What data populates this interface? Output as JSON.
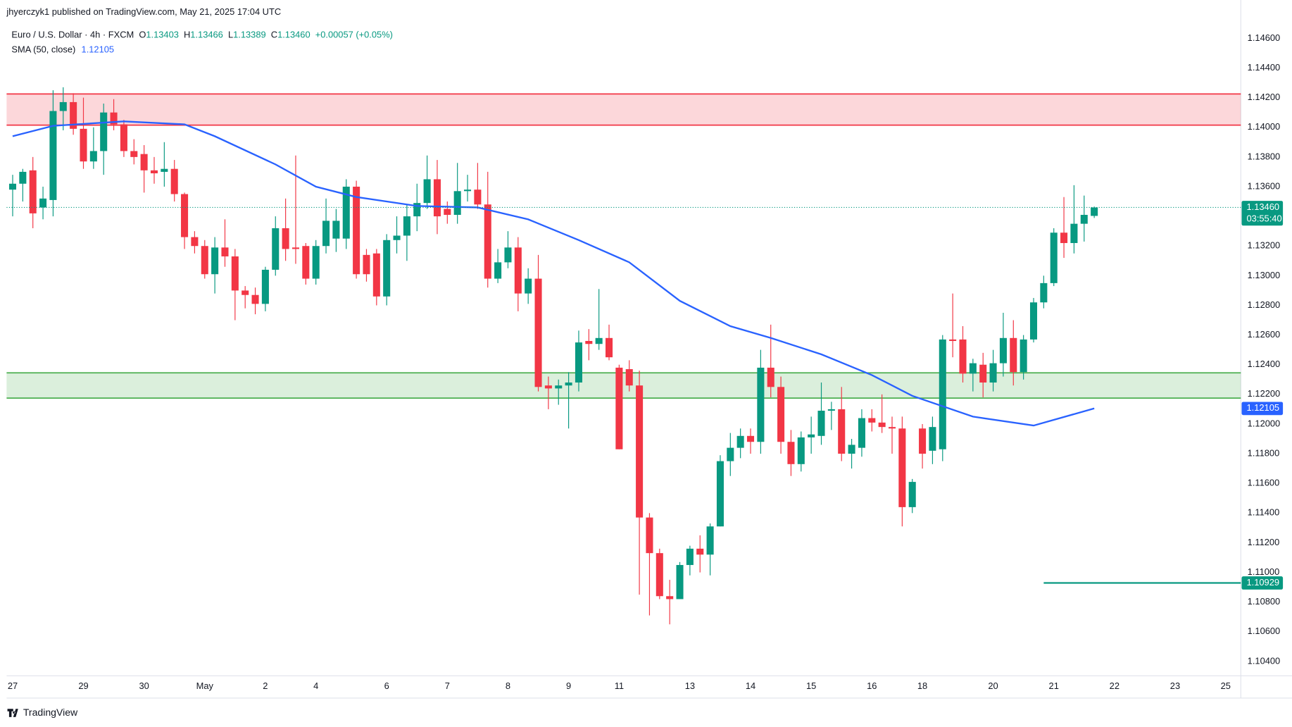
{
  "header": {
    "published": "jhyerczyk1 published on TradingView.com, May 21, 2025 17:04 UTC"
  },
  "legend": {
    "symbol": "Euro / U.S. Dollar · 4h · FXCM",
    "o_label": "O",
    "o": "1.13403",
    "h_label": "H",
    "h": "1.13466",
    "l_label": "L",
    "l": "1.13389",
    "c_label": "C",
    "c": "1.13460",
    "change": "+0.00057 (+0.05%)",
    "sma_name": "SMA (50, close)",
    "sma_value": "1.12105"
  },
  "footer": {
    "brand": "TradingView"
  },
  "chart_data": {
    "type": "candlestick",
    "up_color": "#089981",
    "down_color": "#f23645",
    "grid": false,
    "xlim": [
      -0.6,
      121.5
    ],
    "ylim": [
      1.1032,
      1.1468
    ],
    "xticks": [
      {
        "value": 0,
        "label": "27"
      },
      {
        "value": 7,
        "label": "29"
      },
      {
        "value": 13,
        "label": "30"
      },
      {
        "value": 19,
        "label": "May"
      },
      {
        "value": 25,
        "label": "2"
      },
      {
        "value": 30,
        "label": "4"
      },
      {
        "value": 37,
        "label": "6"
      },
      {
        "value": 43,
        "label": "7"
      },
      {
        "value": 49,
        "label": "8"
      },
      {
        "value": 55,
        "label": "9"
      },
      {
        "value": 60,
        "label": "11"
      },
      {
        "value": 67,
        "label": "13"
      },
      {
        "value": 73,
        "label": "14"
      },
      {
        "value": 79,
        "label": "15"
      },
      {
        "value": 85,
        "label": "16"
      },
      {
        "value": 90,
        "label": "18"
      },
      {
        "value": 97,
        "label": "20"
      },
      {
        "value": 103,
        "label": "21"
      },
      {
        "value": 109,
        "label": "22"
      },
      {
        "value": 115,
        "label": "23"
      },
      {
        "value": 120,
        "label": "25"
      }
    ],
    "yticks": [
      {
        "value": 1.146,
        "label": "1.14600"
      },
      {
        "value": 1.144,
        "label": "1.14400"
      },
      {
        "value": 1.142,
        "label": "1.14200"
      },
      {
        "value": 1.14,
        "label": "1.14000"
      },
      {
        "value": 1.138,
        "label": "1.13800"
      },
      {
        "value": 1.136,
        "label": "1.13600"
      },
      {
        "value": 1.132,
        "label": "1.13200"
      },
      {
        "value": 1.13,
        "label": "1.13000"
      },
      {
        "value": 1.128,
        "label": "1.12800"
      },
      {
        "value": 1.126,
        "label": "1.12600"
      },
      {
        "value": 1.124,
        "label": "1.12400"
      },
      {
        "value": 1.122,
        "label": "1.12200"
      },
      {
        "value": 1.12,
        "label": "1.12000"
      },
      {
        "value": 1.118,
        "label": "1.11800"
      },
      {
        "value": 1.116,
        "label": "1.11600"
      },
      {
        "value": 1.114,
        "label": "1.11400"
      },
      {
        "value": 1.112,
        "label": "1.11200"
      },
      {
        "value": 1.11,
        "label": "1.11000"
      },
      {
        "value": 1.108,
        "label": "1.10800"
      },
      {
        "value": 1.106,
        "label": "1.10600"
      },
      {
        "value": 1.104,
        "label": "1.10400"
      }
    ],
    "open": [
      1.1358,
      1.1362,
      1.1371,
      1.1346,
      1.1351,
      1.1411,
      1.1417,
      1.1399,
      1.1377,
      1.1384,
      1.141,
      1.1402,
      1.1384,
      1.1382,
      1.1371,
      1.137,
      1.1372,
      1.1355,
      1.1326,
      1.132,
      1.1301,
      1.1319,
      1.1313,
      1.129,
      1.1287,
      1.1281,
      1.1304,
      1.1332,
      1.1319,
      1.132,
      1.1298,
      1.132,
      1.1325,
      1.1325,
      1.136,
      1.1314,
      1.1315,
      1.1286,
      1.1324,
      1.1327,
      1.134,
      1.1349,
      1.1365,
      1.1345,
      1.1341,
      1.1357,
      1.1358,
      1.1348,
      1.1298,
      1.1309,
      1.1319,
      1.1288,
      1.1298,
      1.1226,
      1.1224,
      1.1226,
      1.1228,
      1.1256,
      1.1254,
      1.1258,
      1.1238,
      1.1237,
      1.1226,
      1.1137,
      1.1113,
      1.1084,
      1.1082,
      1.1105,
      1.1116,
      1.1112,
      1.1131,
      1.1175,
      1.1184,
      1.1192,
      1.1188,
      1.1238,
      1.1225,
      1.1188,
      1.1173,
      1.1191,
      1.1192,
      1.1209,
      1.121,
      1.118,
      1.1184,
      1.1204,
      1.1201,
      1.1198,
      1.1197,
      1.1144,
      1.1197,
      1.1182,
      1.1183,
      1.1257,
      1.1257,
      1.1234,
      1.124,
      1.1228,
      1.1241,
      1.1258,
      1.1235,
      1.1257,
      1.1282,
      1.1295,
      1.1329,
      1.1322,
      1.1335,
      1.13403
    ],
    "high": [
      1.1368,
      1.1372,
      1.138,
      1.136,
      1.1425,
      1.1427,
      1.1423,
      1.142,
      1.14,
      1.1416,
      1.1419,
      1.1405,
      1.1392,
      1.1388,
      1.138,
      1.139,
      1.1378,
      1.1356,
      1.133,
      1.1324,
      1.1326,
      1.1338,
      1.1318,
      1.1293,
      1.1292,
      1.1306,
      1.134,
      1.1352,
      1.1381,
      1.1322,
      1.1324,
      1.1352,
      1.1345,
      1.1365,
      1.1364,
      1.1318,
      1.1318,
      1.1328,
      1.134,
      1.1348,
      1.1362,
      1.1381,
      1.1378,
      1.135,
      1.1376,
      1.1368,
      1.1376,
      1.137,
      1.1318,
      1.133,
      1.1326,
      1.1305,
      1.1314,
      1.1232,
      1.123,
      1.1235,
      1.1263,
      1.1264,
      1.1291,
      1.1267,
      1.124,
      1.1243,
      1.1236,
      1.114,
      1.1116,
      1.1095,
      1.1107,
      1.1118,
      1.1125,
      1.1133,
      1.1179,
      1.1194,
      1.1197,
      1.1197,
      1.125,
      1.1267,
      1.1232,
      1.1196,
      1.1195,
      1.1205,
      1.1228,
      1.1215,
      1.1225,
      1.119,
      1.121,
      1.121,
      1.122,
      1.1205,
      1.1205,
      1.1163,
      1.12,
      1.1205,
      1.126,
      1.1288,
      1.1266,
      1.1244,
      1.1248,
      1.125,
      1.1275,
      1.127,
      1.126,
      1.1285,
      1.13,
      1.1332,
      1.1353,
      1.1361,
      1.1354,
      1.13466
    ],
    "low": [
      1.134,
      1.135,
      1.1332,
      1.1338,
      1.134,
      1.1398,
      1.1395,
      1.1372,
      1.1372,
      1.1368,
      1.1398,
      1.138,
      1.1375,
      1.1356,
      1.1362,
      1.136,
      1.135,
      1.1318,
      1.1315,
      1.1298,
      1.1288,
      1.1306,
      1.127,
      1.1278,
      1.1274,
      1.1276,
      1.13,
      1.131,
      1.1308,
      1.1294,
      1.1294,
      1.1315,
      1.1316,
      1.1318,
      1.1298,
      1.1296,
      1.128,
      1.128,
      1.1315,
      1.131,
      1.133,
      1.1345,
      1.1328,
      1.1335,
      1.1335,
      1.135,
      1.1345,
      1.1292,
      1.1295,
      1.1305,
      1.1276,
      1.1281,
      1.1222,
      1.121,
      1.1213,
      1.1197,
      1.1222,
      1.1243,
      1.125,
      1.1243,
      1.1183,
      1.1222,
      1.1085,
      1.1071,
      1.1082,
      1.1065,
      1.1082,
      1.1098,
      1.11,
      1.1098,
      1.1131,
      1.1165,
      1.1177,
      1.118,
      1.118,
      1.1218,
      1.118,
      1.1165,
      1.1168,
      1.118,
      1.1186,
      1.1196,
      1.1175,
      1.117,
      1.1178,
      1.1195,
      1.1194,
      1.118,
      1.1131,
      1.114,
      1.117,
      1.1173,
      1.1175,
      1.1245,
      1.1228,
      1.1222,
      1.1218,
      1.1222,
      1.1232,
      1.1226,
      1.123,
      1.1255,
      1.1278,
      1.1293,
      1.1312,
      1.1315,
      1.1323,
      1.13389
    ],
    "close": [
      1.1362,
      1.137,
      1.1342,
      1.1352,
      1.1411,
      1.1417,
      1.1399,
      1.1377,
      1.1384,
      1.141,
      1.1402,
      1.1384,
      1.138,
      1.1371,
      1.1369,
      1.1372,
      1.1355,
      1.1326,
      1.132,
      1.1301,
      1.1319,
      1.1313,
      1.129,
      1.1287,
      1.1281,
      1.1304,
      1.1332,
      1.1318,
      1.1318,
      1.1298,
      1.132,
      1.1337,
      1.1337,
      1.136,
      1.1301,
      1.1301,
      1.1286,
      1.1324,
      1.1327,
      1.134,
      1.1349,
      1.1365,
      1.134,
      1.1341,
      1.1357,
      1.1358,
      1.1348,
      1.1298,
      1.1309,
      1.1319,
      1.1288,
      1.1298,
      1.1225,
      1.1224,
      1.1226,
      1.1228,
      1.1255,
      1.1254,
      1.1258,
      1.1245,
      1.1183,
      1.1226,
      1.1137,
      1.1113,
      1.1084,
      1.1082,
      1.1105,
      1.1116,
      1.1112,
      1.1131,
      1.1175,
      1.1184,
      1.1192,
      1.1188,
      1.1238,
      1.1225,
      1.1188,
      1.1173,
      1.1191,
      1.1193,
      1.1209,
      1.121,
      1.118,
      1.1186,
      1.1204,
      1.1201,
      1.1198,
      1.1197,
      1.1144,
      1.1161,
      1.118,
      1.1198,
      1.1257,
      1.1256,
      1.1234,
      1.1241,
      1.1228,
      1.1241,
      1.1258,
      1.1235,
      1.1257,
      1.1282,
      1.1295,
      1.1329,
      1.1322,
      1.1335,
      1.1341,
      1.1346
    ],
    "sma": {
      "name": "SMA (50, close)",
      "color": "#2962ff",
      "x": [
        0,
        4,
        11,
        17,
        20,
        26,
        30,
        34,
        40,
        46,
        51,
        56,
        61,
        66,
        71,
        75,
        80,
        85,
        89,
        95,
        101,
        107
      ],
      "values": [
        1.1394,
        1.1401,
        1.1404,
        1.1402,
        1.1394,
        1.1375,
        1.136,
        1.1353,
        1.1347,
        1.1346,
        1.1338,
        1.1324,
        1.1309,
        1.1283,
        1.1266,
        1.1258,
        1.1247,
        1.1233,
        1.1219,
        1.1205,
        1.1199,
        1.12105
      ]
    },
    "zones": [
      {
        "from": 1.14015,
        "to": 1.14225,
        "color": "#f23645"
      },
      {
        "from": 1.12175,
        "to": 1.12345,
        "color": "#4caf50"
      }
    ],
    "lines": [
      {
        "value": 1.10929,
        "from": 102,
        "color": "#089981"
      }
    ],
    "price_labels": [
      {
        "value": 1.1346,
        "label": "1.13460",
        "countdown": "03:55:40",
        "color": "#089981"
      },
      {
        "value": 1.12105,
        "label": "1.12105",
        "color": "#2962ff"
      },
      {
        "value": 1.10929,
        "label": "1.10929",
        "color": "#089981"
      }
    ]
  }
}
